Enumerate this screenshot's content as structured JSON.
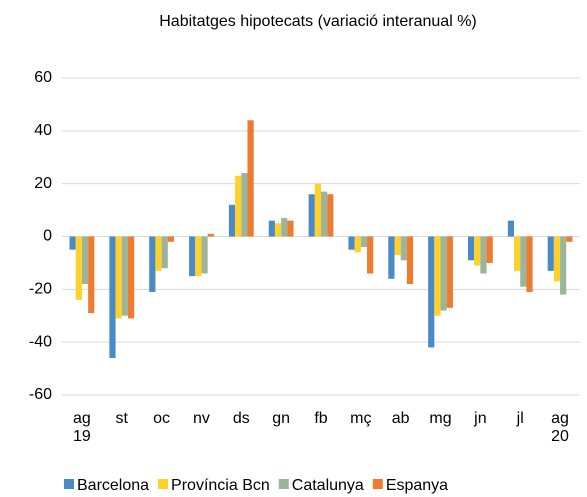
{
  "chart_data": {
    "type": "bar",
    "title": "Habitatges  hipotecats  (variació interanual  %)",
    "categories": [
      "ag\n19",
      "st",
      "oc",
      "nv",
      "ds",
      "gn",
      "fb",
      "mç",
      "ab",
      "mg",
      "jn",
      "jl",
      "ag\n20"
    ],
    "series": [
      {
        "name": "Barcelona",
        "color": "#4a8ac6",
        "values": [
          -5,
          -46,
          -21,
          -15,
          12,
          6,
          16,
          -5,
          -16,
          -42,
          -9,
          6,
          -13
        ]
      },
      {
        "name": "Província Bcn",
        "color": "#ffd12a",
        "values": [
          -24,
          -31,
          -13,
          -15,
          23,
          5,
          20,
          -6,
          -7,
          -30,
          -11,
          -13,
          -17
        ]
      },
      {
        "name": "Catalunya",
        "color": "#9bb59a",
        "values": [
          -18,
          -30,
          -12,
          -14,
          24,
          7,
          17,
          -4,
          -9,
          -28,
          -14,
          -19,
          -22
        ]
      },
      {
        "name": "Espanya",
        "color": "#ee7b30",
        "values": [
          -29,
          -31,
          -2,
          1,
          44,
          6,
          16,
          -14,
          -18,
          -27,
          -10,
          -21,
          -2
        ]
      }
    ],
    "ylim": [
      -60,
      60
    ],
    "yticks": [
      -60,
      -40,
      -20,
      0,
      20,
      40,
      60
    ],
    "grid": true
  }
}
